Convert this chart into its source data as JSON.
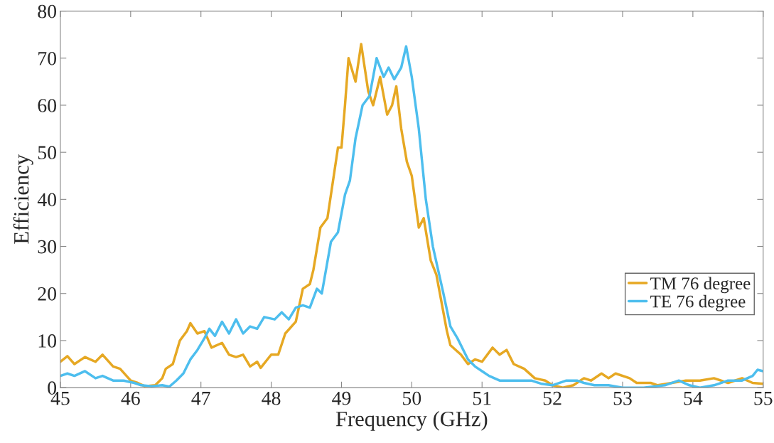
{
  "chart_data": {
    "type": "line",
    "xlabel": "Frequency (GHz)",
    "ylabel": "Efficiency",
    "xlim": [
      45,
      55
    ],
    "xticks": [
      45,
      46,
      47,
      48,
      49,
      50,
      51,
      52,
      53,
      54,
      55
    ],
    "ylim": [
      0,
      80
    ],
    "yticks": [
      0,
      10,
      20,
      30,
      40,
      50,
      60,
      70,
      80
    ],
    "grid": false,
    "legend": "right",
    "marker": "none",
    "line_style": "solid",
    "series": [
      {
        "name": "TM 76 degree",
        "color": "#e6a823",
        "x": [
          45.0,
          45.1,
          45.2,
          45.35,
          45.5,
          45.6,
          45.75,
          45.85,
          46.0,
          46.1,
          46.2,
          46.35,
          46.45,
          46.5,
          46.6,
          46.7,
          46.8,
          46.85,
          46.95,
          47.05,
          47.15,
          47.3,
          47.4,
          47.5,
          47.6,
          47.7,
          47.8,
          47.85,
          48.0,
          48.1,
          48.2,
          48.35,
          48.45,
          48.55,
          48.6,
          48.7,
          48.8,
          48.9,
          48.95,
          49.0,
          49.05,
          49.1,
          49.2,
          49.28,
          49.33,
          49.38,
          49.45,
          49.55,
          49.65,
          49.72,
          49.78,
          49.85,
          49.93,
          50.0,
          50.1,
          50.17,
          50.27,
          50.35,
          50.5,
          50.55,
          50.7,
          50.8,
          50.9,
          51.0,
          51.15,
          51.25,
          51.35,
          51.45,
          51.6,
          51.75,
          51.9,
          52.0,
          52.15,
          52.3,
          52.45,
          52.55,
          52.7,
          52.8,
          52.9,
          53.1,
          53.2,
          53.4,
          53.5,
          53.7,
          53.9,
          54.1,
          54.3,
          54.5,
          54.7,
          54.85,
          55.0
        ],
        "values": [
          5.5,
          6.7,
          5,
          6.5,
          5.5,
          7,
          4.5,
          4,
          1.5,
          1,
          0.3,
          0.5,
          2,
          4,
          5,
          10,
          12,
          13.7,
          11.5,
          12,
          8.5,
          9.5,
          7,
          6.5,
          7,
          4.5,
          5.5,
          4.2,
          7,
          7,
          11.5,
          14,
          21,
          22,
          25,
          34,
          36,
          46,
          51,
          51,
          60,
          70,
          65,
          73,
          68,
          63,
          60,
          66,
          58,
          60,
          64,
          55,
          48,
          45,
          34,
          36,
          27,
          24,
          12,
          9,
          7,
          5,
          6,
          5.5,
          8.5,
          7,
          8,
          5,
          4,
          2,
          1.5,
          0.5,
          0,
          0.5,
          2,
          1.5,
          3,
          2,
          3,
          2,
          1,
          1,
          0.5,
          1,
          1.5,
          1.5,
          2,
          1,
          2,
          1,
          0.8
        ]
      },
      {
        "name": "TE 76 degree",
        "color": "#4dbeee",
        "x": [
          45.0,
          45.1,
          45.2,
          45.35,
          45.5,
          45.6,
          45.75,
          45.9,
          46.05,
          46.15,
          46.3,
          46.45,
          46.55,
          46.65,
          46.75,
          46.85,
          46.95,
          47.05,
          47.12,
          47.2,
          47.3,
          47.4,
          47.5,
          47.6,
          47.7,
          47.8,
          47.9,
          48.05,
          48.15,
          48.25,
          48.35,
          48.45,
          48.55,
          48.65,
          48.72,
          48.85,
          48.95,
          49.05,
          49.12,
          49.2,
          49.3,
          49.4,
          49.5,
          49.6,
          49.67,
          49.75,
          49.85,
          49.92,
          50.0,
          50.1,
          50.2,
          50.3,
          50.45,
          50.55,
          50.65,
          50.8,
          50.9,
          51.0,
          51.1,
          51.25,
          51.4,
          51.55,
          51.7,
          51.85,
          52.0,
          52.2,
          52.35,
          52.45,
          52.6,
          52.8,
          53.0,
          53.3,
          53.6,
          53.8,
          53.95,
          54.1,
          54.3,
          54.5,
          54.7,
          54.85,
          54.92,
          55.0
        ],
        "values": [
          2.5,
          3,
          2.5,
          3.5,
          2,
          2.5,
          1.5,
          1.5,
          1,
          0.5,
          0.3,
          0.5,
          0.2,
          1.5,
          3,
          6,
          8,
          10.5,
          12.5,
          11,
          14,
          11.5,
          14.5,
          11.5,
          13,
          12.5,
          15,
          14.5,
          16,
          14.5,
          17,
          17.5,
          17,
          21,
          20,
          31,
          33,
          41,
          44,
          53,
          60,
          62,
          70,
          66,
          68,
          65.5,
          68,
          72.5,
          66,
          55,
          40,
          30,
          20,
          13,
          10.5,
          6,
          4.5,
          3.5,
          2.5,
          1.5,
          1.5,
          1.5,
          1.5,
          0.8,
          0.5,
          1.5,
          1.5,
          1,
          0.5,
          0.5,
          0,
          0,
          0.5,
          1.5,
          0.5,
          0,
          0.5,
          1.5,
          1.5,
          2.5,
          3.8,
          3.5
        ]
      }
    ]
  }
}
